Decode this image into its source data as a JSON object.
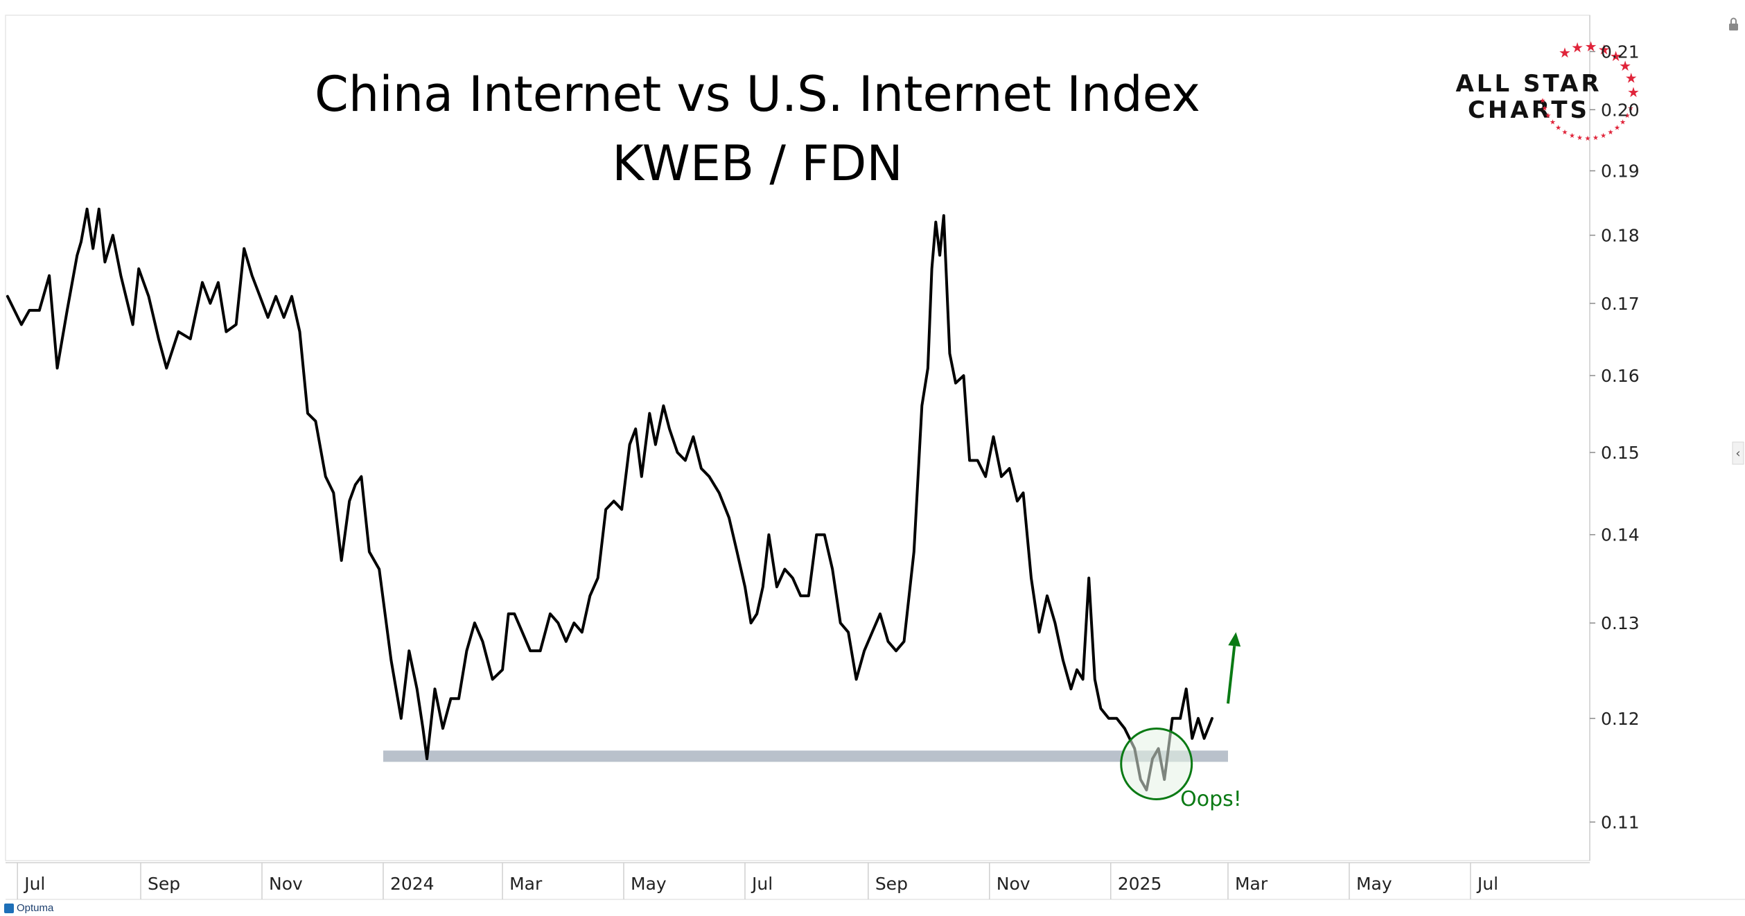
{
  "colors": {
    "price_line": "#000000",
    "support_band": "#b9c1cb",
    "annotation": "#0a7a14",
    "circle_fill": "#e6f2e6",
    "logo_star": "#e0243a"
  },
  "chart_data": {
    "type": "line",
    "title": "China Internet vs U.S. Internet Index",
    "subtitle": "KWEB / FDN",
    "y_axis": {
      "scale": "log",
      "ticks": [
        0.11,
        0.12,
        0.13,
        0.14,
        0.15,
        0.16,
        0.17,
        0.18,
        0.19,
        0.2,
        0.21
      ],
      "tick_labels": [
        "0.11",
        "0.12",
        "0.13",
        "0.14",
        "0.15",
        "0.16",
        "0.17",
        "0.18",
        "0.19",
        "0.20",
        "0.21"
      ],
      "range": [
        0.1065,
        0.2165
      ]
    },
    "x_axis": {
      "tick_labels": [
        "Jul",
        "Sep",
        "Nov",
        "2024",
        "Mar",
        "May",
        "Jul",
        "Sep",
        "Nov",
        "2025",
        "Mar",
        "May",
        "Jul"
      ],
      "tick_dates": [
        "2023-07-01",
        "2023-09-01",
        "2023-11-01",
        "2024-01-01",
        "2024-03-01",
        "2024-05-01",
        "2024-07-01",
        "2024-09-01",
        "2024-11-01",
        "2025-01-01",
        "2025-03-01",
        "2025-05-01",
        "2025-07-01"
      ],
      "range": [
        "2023-06-25",
        "2025-08-30"
      ]
    },
    "series": [
      {
        "points": [
          [
            "2023-06-26",
            0.171
          ],
          [
            "2023-07-03",
            0.167
          ],
          [
            "2023-07-07",
            0.169
          ],
          [
            "2023-07-12",
            0.169
          ],
          [
            "2023-07-17",
            0.174
          ],
          [
            "2023-07-21",
            0.161
          ],
          [
            "2023-07-26",
            0.169
          ],
          [
            "2023-07-31",
            0.177
          ],
          [
            "2023-08-02",
            0.179
          ],
          [
            "2023-08-05",
            0.184
          ],
          [
            "2023-08-08",
            0.178
          ],
          [
            "2023-08-11",
            0.184
          ],
          [
            "2023-08-14",
            0.176
          ],
          [
            "2023-08-18",
            0.18
          ],
          [
            "2023-08-22",
            0.174
          ],
          [
            "2023-08-28",
            0.167
          ],
          [
            "2023-08-31",
            0.175
          ],
          [
            "2023-09-05",
            0.171
          ],
          [
            "2023-09-10",
            0.165
          ],
          [
            "2023-09-14",
            0.161
          ],
          [
            "2023-09-20",
            0.166
          ],
          [
            "2023-09-26",
            0.165
          ],
          [
            "2023-10-02",
            0.173
          ],
          [
            "2023-10-06",
            0.17
          ],
          [
            "2023-10-10",
            0.173
          ],
          [
            "2023-10-14",
            0.166
          ],
          [
            "2023-10-19",
            0.167
          ],
          [
            "2023-10-23",
            0.178
          ],
          [
            "2023-10-27",
            0.174
          ],
          [
            "2023-10-31",
            0.171
          ],
          [
            "2023-11-04",
            0.168
          ],
          [
            "2023-11-08",
            0.171
          ],
          [
            "2023-11-12",
            0.168
          ],
          [
            "2023-11-16",
            0.171
          ],
          [
            "2023-11-20",
            0.166
          ],
          [
            "2023-11-24",
            0.155
          ],
          [
            "2023-11-28",
            0.154
          ],
          [
            "2023-12-03",
            0.147
          ],
          [
            "2023-12-07",
            0.145
          ],
          [
            "2023-12-11",
            0.137
          ],
          [
            "2023-12-15",
            0.144
          ],
          [
            "2023-12-18",
            0.146
          ],
          [
            "2023-12-21",
            0.147
          ],
          [
            "2023-12-25",
            0.138
          ],
          [
            "2023-12-30",
            0.136
          ],
          [
            "2024-01-05",
            0.126
          ],
          [
            "2024-01-10",
            0.12
          ],
          [
            "2024-01-14",
            0.127
          ],
          [
            "2024-01-18",
            0.123
          ],
          [
            "2024-01-21",
            0.119
          ],
          [
            "2024-01-23",
            0.116
          ],
          [
            "2024-01-27",
            0.123
          ],
          [
            "2024-01-31",
            0.119
          ],
          [
            "2024-02-04",
            0.122
          ],
          [
            "2024-02-08",
            0.122
          ],
          [
            "2024-02-12",
            0.127
          ],
          [
            "2024-02-16",
            0.13
          ],
          [
            "2024-02-20",
            0.128
          ],
          [
            "2024-02-25",
            0.124
          ],
          [
            "2024-03-01",
            0.125
          ],
          [
            "2024-03-04",
            0.131
          ],
          [
            "2024-03-07",
            0.131
          ],
          [
            "2024-03-11",
            0.129
          ],
          [
            "2024-03-15",
            0.127
          ],
          [
            "2024-03-20",
            0.127
          ],
          [
            "2024-03-25",
            0.131
          ],
          [
            "2024-03-29",
            0.13
          ],
          [
            "2024-04-02",
            0.128
          ],
          [
            "2024-04-06",
            0.13
          ],
          [
            "2024-04-10",
            0.129
          ],
          [
            "2024-04-14",
            0.133
          ],
          [
            "2024-04-18",
            0.135
          ],
          [
            "2024-04-22",
            0.143
          ],
          [
            "2024-04-26",
            0.144
          ],
          [
            "2024-04-30",
            0.143
          ],
          [
            "2024-05-04",
            0.151
          ],
          [
            "2024-05-07",
            0.153
          ],
          [
            "2024-05-10",
            0.147
          ],
          [
            "2024-05-14",
            0.155
          ],
          [
            "2024-05-17",
            0.151
          ],
          [
            "2024-05-21",
            0.156
          ],
          [
            "2024-05-24",
            0.153
          ],
          [
            "2024-05-28",
            0.15
          ],
          [
            "2024-06-01",
            0.149
          ],
          [
            "2024-06-05",
            0.152
          ],
          [
            "2024-06-09",
            0.148
          ],
          [
            "2024-06-13",
            0.147
          ],
          [
            "2024-06-18",
            0.145
          ],
          [
            "2024-06-23",
            0.142
          ],
          [
            "2024-06-27",
            0.138
          ],
          [
            "2024-07-01",
            0.134
          ],
          [
            "2024-07-04",
            0.13
          ],
          [
            "2024-07-07",
            0.131
          ],
          [
            "2024-07-10",
            0.134
          ],
          [
            "2024-07-13",
            0.14
          ],
          [
            "2024-07-17",
            0.134
          ],
          [
            "2024-07-21",
            0.136
          ],
          [
            "2024-07-25",
            0.135
          ],
          [
            "2024-07-29",
            0.133
          ],
          [
            "2024-08-02",
            0.133
          ],
          [
            "2024-08-06",
            0.14
          ],
          [
            "2024-08-10",
            0.14
          ],
          [
            "2024-08-14",
            0.136
          ],
          [
            "2024-08-18",
            0.13
          ],
          [
            "2024-08-22",
            0.129
          ],
          [
            "2024-08-26",
            0.124
          ],
          [
            "2024-08-30",
            0.127
          ],
          [
            "2024-09-03",
            0.129
          ],
          [
            "2024-09-07",
            0.131
          ],
          [
            "2024-09-11",
            0.128
          ],
          [
            "2024-09-15",
            0.127
          ],
          [
            "2024-09-19",
            0.128
          ],
          [
            "2024-09-24",
            0.138
          ],
          [
            "2024-09-28",
            0.156
          ],
          [
            "2024-10-01",
            0.161
          ],
          [
            "2024-10-03",
            0.175
          ],
          [
            "2024-10-05",
            0.182
          ],
          [
            "2024-10-07",
            0.177
          ],
          [
            "2024-10-09",
            0.183
          ],
          [
            "2024-10-12",
            0.163
          ],
          [
            "2024-10-15",
            0.159
          ],
          [
            "2024-10-19",
            0.16
          ],
          [
            "2024-10-22",
            0.149
          ],
          [
            "2024-10-26",
            0.149
          ],
          [
            "2024-10-30",
            0.147
          ],
          [
            "2024-11-03",
            0.152
          ],
          [
            "2024-11-07",
            0.147
          ],
          [
            "2024-11-11",
            0.148
          ],
          [
            "2024-11-15",
            0.144
          ],
          [
            "2024-11-18",
            0.145
          ],
          [
            "2024-11-22",
            0.135
          ],
          [
            "2024-11-26",
            0.129
          ],
          [
            "2024-11-30",
            0.133
          ],
          [
            "2024-12-04",
            0.13
          ],
          [
            "2024-12-08",
            0.126
          ],
          [
            "2024-12-12",
            0.123
          ],
          [
            "2024-12-15",
            0.125
          ],
          [
            "2024-12-18",
            0.124
          ],
          [
            "2024-12-21",
            0.135
          ],
          [
            "2024-12-24",
            0.124
          ],
          [
            "2024-12-27",
            0.121
          ],
          [
            "2024-12-31",
            0.12
          ],
          [
            "2025-01-04",
            0.12
          ],
          [
            "2025-01-08",
            0.119
          ],
          [
            "2025-01-13",
            0.117
          ],
          [
            "2025-01-16",
            0.114
          ],
          [
            "2025-01-19",
            0.113
          ],
          [
            "2025-01-22",
            0.116
          ],
          [
            "2025-01-25",
            0.117
          ],
          [
            "2025-01-28",
            0.114
          ],
          [
            "2025-02-01",
            0.12
          ],
          [
            "2025-02-05",
            0.12
          ],
          [
            "2025-02-08",
            0.123
          ],
          [
            "2025-02-11",
            0.118
          ],
          [
            "2025-02-14",
            0.12
          ],
          [
            "2025-02-17",
            0.118
          ],
          [
            "2025-02-21",
            0.12
          ]
        ]
      }
    ],
    "support_zone": {
      "y": [
        0.1157,
        0.1168
      ],
      "x": [
        "2024-01-01",
        "2025-03-01"
      ]
    },
    "annotations": [
      {
        "type": "circle",
        "x": "2025-01-24",
        "y": 0.1155
      },
      {
        "type": "arrow",
        "from": [
          "2025-02-29",
          0.1215
        ],
        "to": [
          "2025-03-05",
          0.129
        ]
      },
      {
        "type": "text",
        "text": "Oops!",
        "x": "2025-02-05",
        "y": 0.1115
      }
    ],
    "legend": "none",
    "grid": false
  },
  "logo": {
    "line1": "ALL STAR",
    "line2": "CHARTS",
    "star": "★"
  },
  "footer": {
    "brand": "Optuma"
  },
  "ui": {
    "lock_icon": "lock-icon",
    "collapse_icon": "chevron-left-icon",
    "collapse_glyph": "‹"
  }
}
